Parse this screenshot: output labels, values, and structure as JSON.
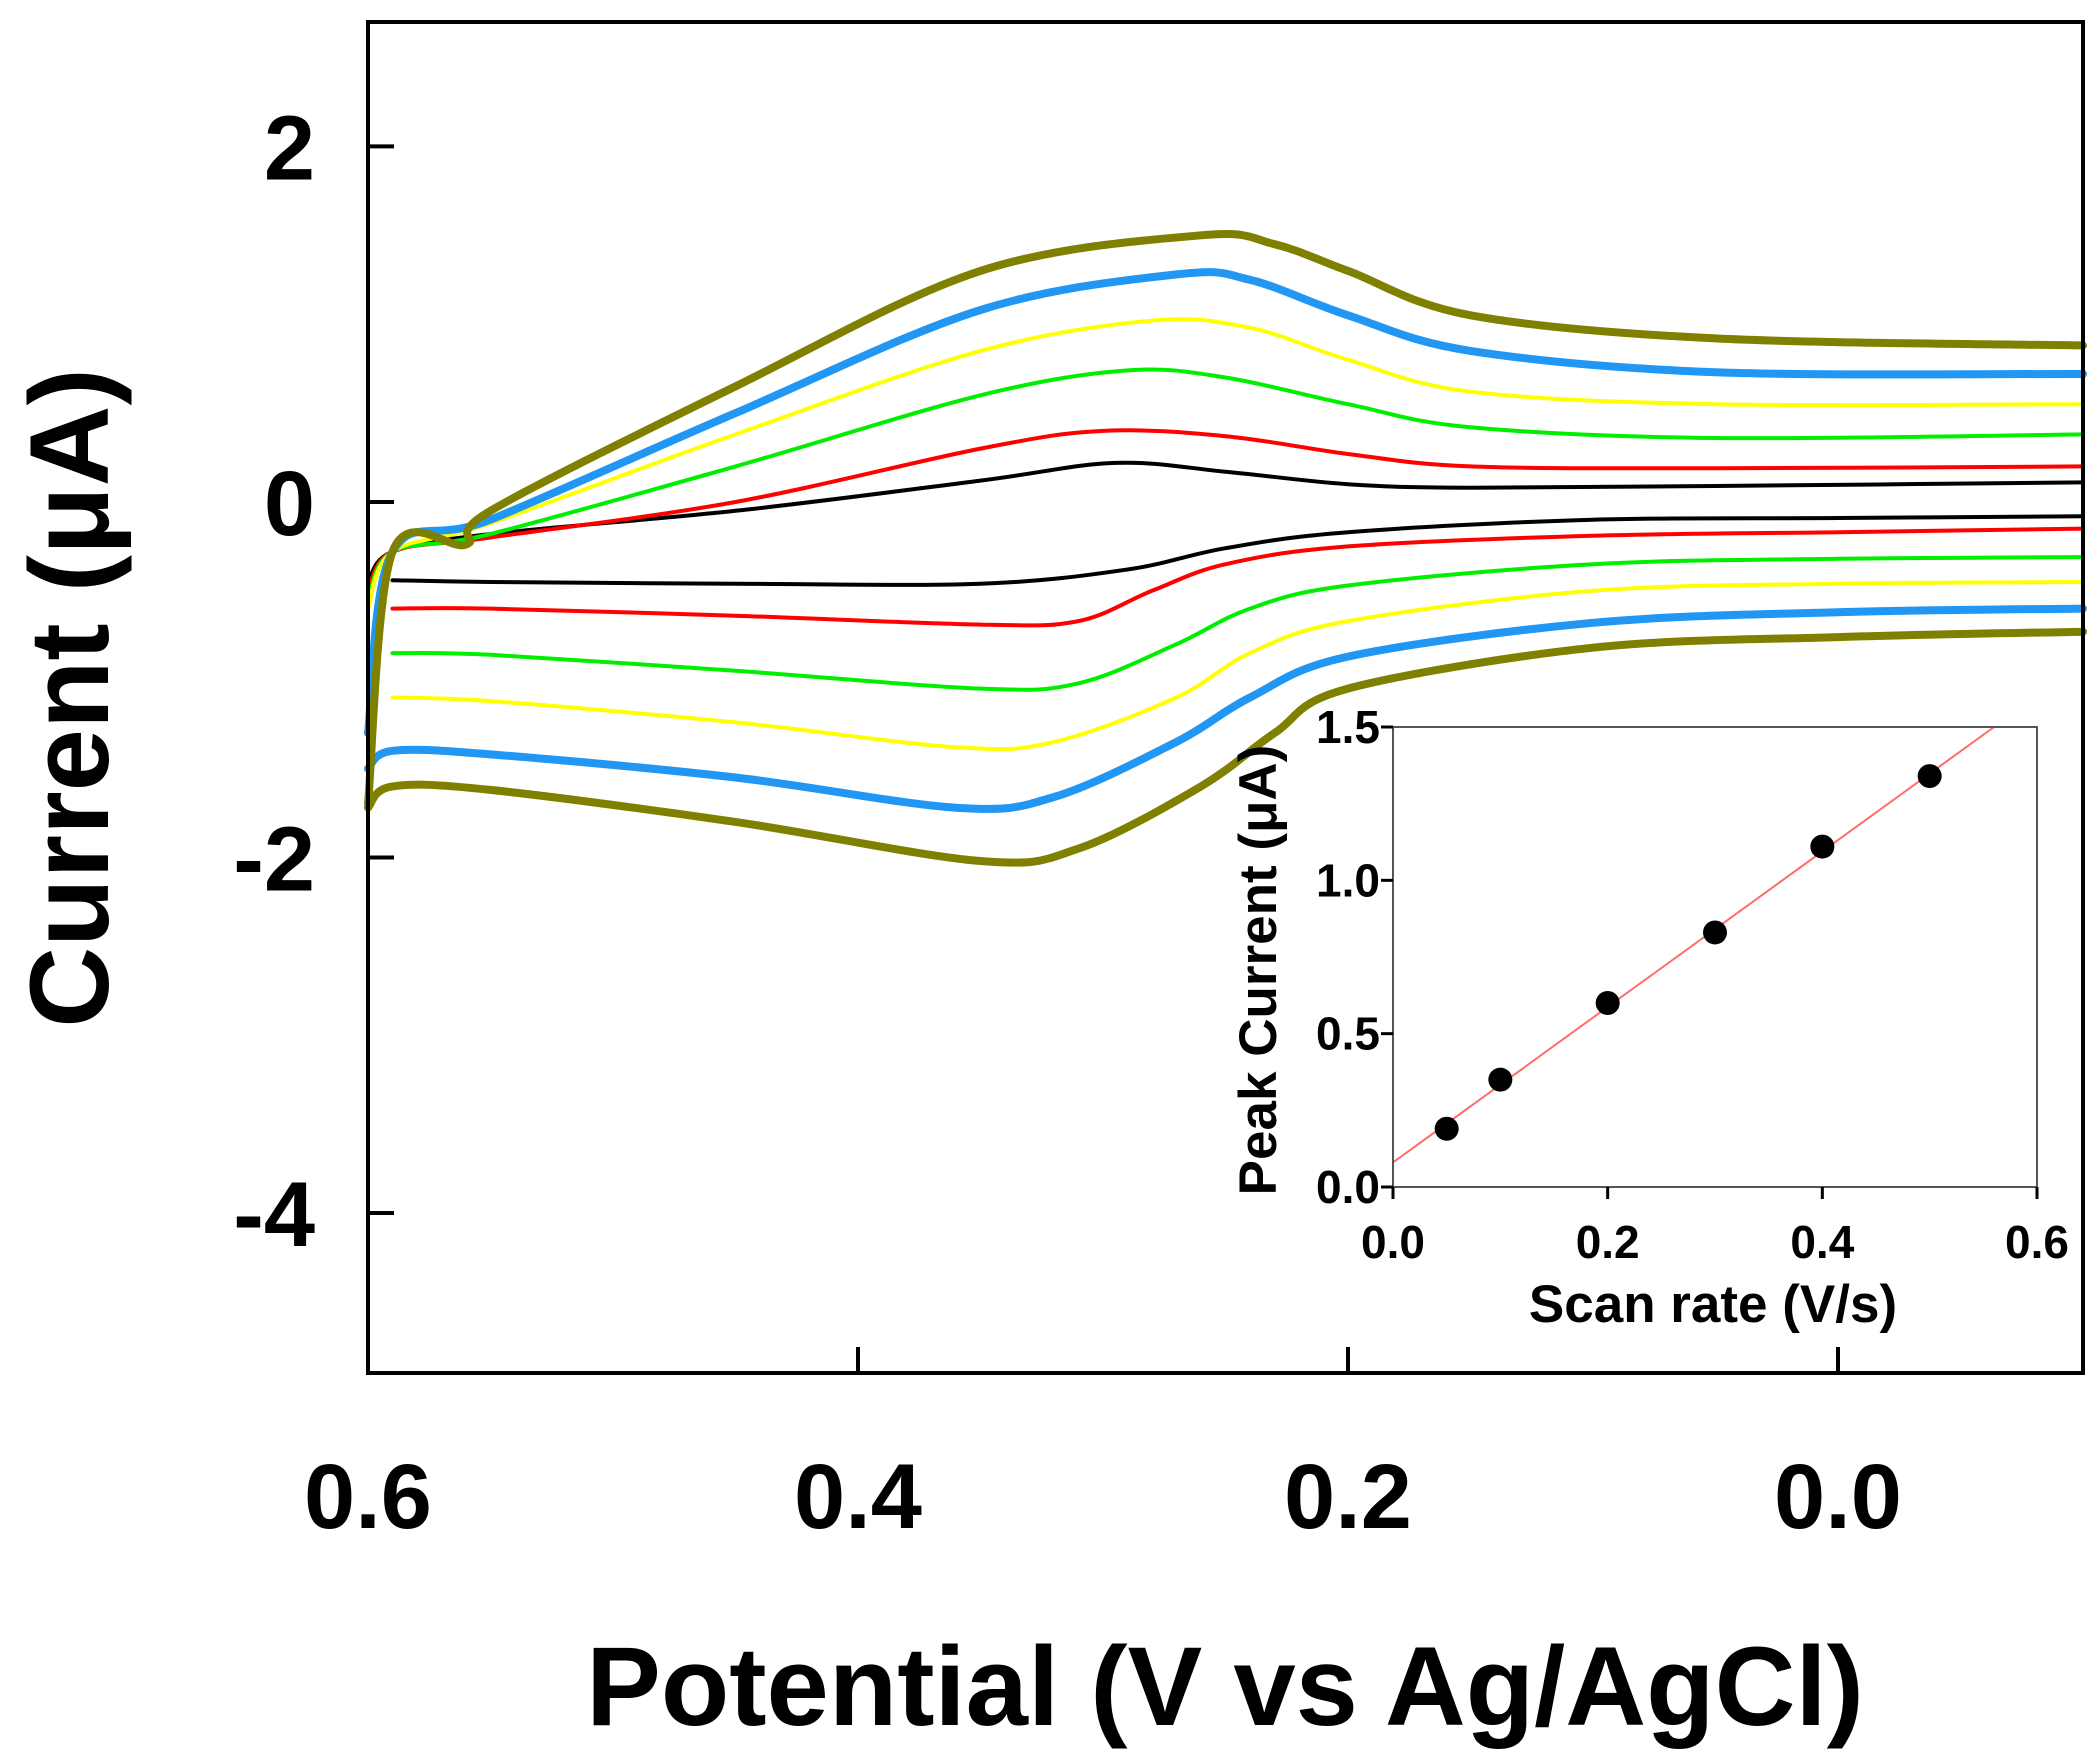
{
  "chart_data": [
    {
      "id": "cv-main",
      "type": "line",
      "title": "",
      "xlabel": "Potential (V vs Ag/AgCl)",
      "ylabel": "Current (μA)",
      "xlim": [
        0.6,
        -0.1
      ],
      "ylim": [
        -4.9,
        2.7
      ],
      "xticks": [
        0.6,
        0.4,
        0.2,
        0.0
      ],
      "xtick_labels": [
        "0.6",
        "0.4",
        "0.2",
        "0.0"
      ],
      "yticks": [
        2,
        0,
        -2,
        -4
      ],
      "ytick_labels": [
        "2",
        "0",
        "-2",
        "-4"
      ],
      "grid": false,
      "series": [
        {
          "name": "curve-1",
          "color": "#000000",
          "width": "thin",
          "anodic": [
            [
              0.6,
              -0.45
            ],
            [
              0.59,
              -0.28
            ],
            [
              0.55,
              -0.18
            ],
            [
              0.45,
              -0.05
            ],
            [
              0.35,
              0.12
            ],
            [
              0.295,
              0.22
            ],
            [
              0.25,
              0.17
            ],
            [
              0.2,
              0.1
            ],
            [
              0.15,
              0.08
            ],
            [
              0.05,
              0.09
            ],
            [
              -0.1,
              0.11
            ]
          ],
          "cathodic": [
            [
              0.59,
              -0.44
            ],
            [
              0.55,
              -0.45
            ],
            [
              0.45,
              -0.46
            ],
            [
              0.35,
              -0.46
            ],
            [
              0.29,
              -0.38
            ],
            [
              0.25,
              -0.26
            ],
            [
              0.2,
              -0.17
            ],
            [
              0.1,
              -0.1
            ],
            [
              0.0,
              -0.09
            ],
            [
              -0.1,
              -0.08
            ]
          ]
        },
        {
          "name": "curve-2",
          "color": "#ff0000",
          "width": "thin",
          "anodic": [
            [
              0.6,
              -0.5
            ],
            [
              0.59,
              -0.28
            ],
            [
              0.55,
              -0.2
            ],
            [
              0.45,
              0.0
            ],
            [
              0.35,
              0.3
            ],
            [
              0.3,
              0.4
            ],
            [
              0.25,
              0.37
            ],
            [
              0.2,
              0.27
            ],
            [
              0.15,
              0.2
            ],
            [
              0.05,
              0.19
            ],
            [
              -0.1,
              0.2
            ]
          ],
          "cathodic": [
            [
              0.59,
              -0.6
            ],
            [
              0.55,
              -0.6
            ],
            [
              0.45,
              -0.64
            ],
            [
              0.35,
              -0.69
            ],
            [
              0.31,
              -0.67
            ],
            [
              0.28,
              -0.5
            ],
            [
              0.25,
              -0.35
            ],
            [
              0.2,
              -0.25
            ],
            [
              0.1,
              -0.19
            ],
            [
              0.0,
              -0.17
            ],
            [
              -0.1,
              -0.15
            ]
          ]
        },
        {
          "name": "curve-3",
          "color": "#00ee00",
          "width": "thin",
          "anodic": [
            [
              0.6,
              -0.55
            ],
            [
              0.59,
              -0.28
            ],
            [
              0.55,
              -0.18
            ],
            [
              0.45,
              0.2
            ],
            [
              0.35,
              0.6
            ],
            [
              0.29,
              0.74
            ],
            [
              0.25,
              0.7
            ],
            [
              0.2,
              0.55
            ],
            [
              0.15,
              0.42
            ],
            [
              0.05,
              0.36
            ],
            [
              -0.1,
              0.38
            ]
          ],
          "cathodic": [
            [
              0.59,
              -0.85
            ],
            [
              0.55,
              -0.86
            ],
            [
              0.45,
              -0.95
            ],
            [
              0.35,
              -1.05
            ],
            [
              0.31,
              -1.02
            ],
            [
              0.27,
              -0.8
            ],
            [
              0.24,
              -0.6
            ],
            [
              0.2,
              -0.47
            ],
            [
              0.1,
              -0.35
            ],
            [
              0.0,
              -0.32
            ],
            [
              -0.1,
              -0.31
            ]
          ]
        },
        {
          "name": "curve-4",
          "color": "#ffff00",
          "width": "thin",
          "anodic": [
            [
              0.6,
              -0.6
            ],
            [
              0.59,
              -0.28
            ],
            [
              0.55,
              -0.12
            ],
            [
              0.45,
              0.38
            ],
            [
              0.35,
              0.85
            ],
            [
              0.28,
              1.02
            ],
            [
              0.24,
              0.98
            ],
            [
              0.2,
              0.8
            ],
            [
              0.15,
              0.62
            ],
            [
              0.05,
              0.55
            ],
            [
              -0.1,
              0.55
            ]
          ],
          "cathodic": [
            [
              0.59,
              -1.1
            ],
            [
              0.55,
              -1.12
            ],
            [
              0.45,
              -1.24
            ],
            [
              0.36,
              -1.38
            ],
            [
              0.32,
              -1.35
            ],
            [
              0.27,
              -1.1
            ],
            [
              0.24,
              -0.85
            ],
            [
              0.2,
              -0.67
            ],
            [
              0.1,
              -0.5
            ],
            [
              0.0,
              -0.46
            ],
            [
              -0.1,
              -0.45
            ]
          ]
        },
        {
          "name": "curve-5",
          "color": "#2196f3",
          "width": "thick",
          "anodic": [
            [
              0.6,
              -1.3
            ],
            [
              0.59,
              -0.28
            ],
            [
              0.55,
              -0.1
            ],
            [
              0.45,
              0.5
            ],
            [
              0.35,
              1.08
            ],
            [
              0.27,
              1.28
            ],
            [
              0.24,
              1.25
            ],
            [
              0.2,
              1.05
            ],
            [
              0.15,
              0.85
            ],
            [
              0.05,
              0.73
            ],
            [
              -0.1,
              0.72
            ]
          ],
          "cathodic": [
            [
              0.6,
              -1.5
            ],
            [
              0.59,
              -1.4
            ],
            [
              0.55,
              -1.42
            ],
            [
              0.45,
              -1.55
            ],
            [
              0.36,
              -1.72
            ],
            [
              0.32,
              -1.66
            ],
            [
              0.27,
              -1.35
            ],
            [
              0.24,
              -1.1
            ],
            [
              0.2,
              -0.87
            ],
            [
              0.1,
              -0.68
            ],
            [
              0.0,
              -0.62
            ],
            [
              -0.1,
              -0.6
            ]
          ]
        },
        {
          "name": "curve-6",
          "color": "#808000",
          "width": "thick",
          "anodic": [
            [
              0.6,
              -1.7
            ],
            [
              0.59,
              -0.28
            ],
            [
              0.56,
              -0.24
            ],
            [
              0.55,
              -0.05
            ],
            [
              0.45,
              0.65
            ],
            [
              0.35,
              1.3
            ],
            [
              0.26,
              1.5
            ],
            [
              0.23,
              1.45
            ],
            [
              0.2,
              1.3
            ],
            [
              0.15,
              1.05
            ],
            [
              0.05,
              0.92
            ],
            [
              -0.1,
              0.88
            ]
          ],
          "cathodic": [
            [
              0.6,
              -1.72
            ],
            [
              0.59,
              -1.6
            ],
            [
              0.55,
              -1.62
            ],
            [
              0.45,
              -1.8
            ],
            [
              0.35,
              -2.02
            ],
            [
              0.31,
              -1.95
            ],
            [
              0.26,
              -1.6
            ],
            [
              0.23,
              -1.3
            ],
            [
              0.2,
              -1.05
            ],
            [
              0.1,
              -0.82
            ],
            [
              0.0,
              -0.76
            ],
            [
              -0.1,
              -0.73
            ]
          ]
        }
      ]
    },
    {
      "id": "inset-peak-current",
      "type": "scatter",
      "title": "",
      "xlabel": "Scan rate (V/s)",
      "ylabel": "Peak Current (μA)",
      "xlim": [
        0.0,
        0.6
      ],
      "ylim": [
        0.0,
        1.5
      ],
      "xticks": [
        0.0,
        0.2,
        0.4,
        0.6
      ],
      "xtick_labels": [
        "0.0",
        "0.2",
        "0.4",
        "0.6"
      ],
      "yticks": [
        0.0,
        0.5,
        1.0,
        1.5
      ],
      "ytick_labels": [
        "0.0",
        "0.5",
        "1.0",
        "1.5"
      ],
      "grid": false,
      "points": {
        "x": [
          0.05,
          0.1,
          0.2,
          0.3,
          0.4,
          0.5
        ],
        "y": [
          0.19,
          0.35,
          0.6,
          0.83,
          1.11,
          1.34
        ],
        "color": "#000000"
      },
      "fit_line": {
        "x": [
          0.0,
          0.56
        ],
        "y": [
          0.08,
          1.5
        ],
        "color": "#ff6b6b"
      }
    }
  ]
}
